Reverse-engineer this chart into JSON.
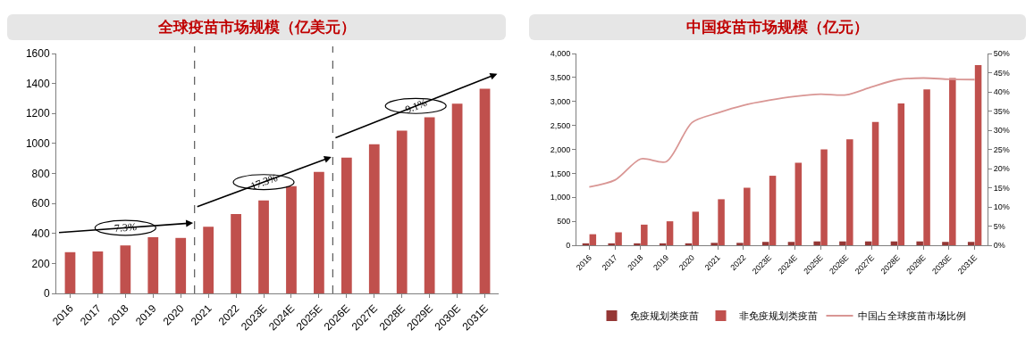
{
  "chart_data": [
    {
      "type": "bar",
      "title": "全球疫苗市场规模（亿美元）",
      "categories": [
        "2016",
        "2017",
        "2018",
        "2019",
        "2020",
        "2021",
        "2022",
        "2023E",
        "2024E",
        "2025E",
        "2026E",
        "2027E",
        "2028E",
        "2029E",
        "2030E",
        "2031E"
      ],
      "values": [
        275,
        280,
        320,
        375,
        370,
        445,
        530,
        620,
        715,
        810,
        905,
        995,
        1085,
        1175,
        1265,
        1365
      ],
      "color": "#c0504d",
      "ylim": [
        0,
        1600
      ],
      "yticks": [
        0,
        200,
        400,
        600,
        800,
        1000,
        1200,
        1400,
        1600
      ],
      "grid": false,
      "legend": false,
      "annotations": [
        "7.3%",
        "17.3%",
        "9.1%"
      ]
    },
    {
      "type": "bar",
      "title": "中国疫苗市场规模（亿元）",
      "categories": [
        "2016",
        "2017",
        "2018",
        "2019",
        "2020",
        "2021",
        "2022",
        "2023E",
        "2024E",
        "2025E",
        "2026E",
        "2027E",
        "2028E",
        "2029E",
        "2030E",
        "2031E"
      ],
      "series": [
        {
          "name": "免疫规划类疫苗",
          "color": "#953735",
          "values": [
            40,
            40,
            40,
            40,
            40,
            50,
            50,
            70,
            70,
            80,
            80,
            80,
            80,
            80,
            70,
            70
          ]
        },
        {
          "name": "非免疫规划类疫苗",
          "color": "#c0504d",
          "values": [
            230,
            270,
            430,
            500,
            700,
            960,
            1200,
            1450,
            1720,
            2000,
            2210,
            2570,
            2960,
            3250,
            3490,
            3760
          ]
        },
        {
          "name": "中国占全球疫苗市场比例",
          "type": "line",
          "axis": "y2",
          "color": "#d99694",
          "values": [
            15.2,
            17,
            22.5,
            21.8,
            32,
            34.5,
            36.5,
            37.8,
            38.8,
            39.4,
            39.2,
            41.3,
            43.2,
            43.6,
            43.3,
            43.2
          ]
        }
      ],
      "ylim": [
        0,
        4000
      ],
      "yticks": [
        0,
        {
          "value": 500,
          "label": "500"
        },
        {
          "value": 1000,
          "label": "1,000"
        },
        {
          "value": 1500,
          "label": "1,500"
        },
        {
          "value": 2000,
          "label": "2,000"
        },
        {
          "value": 2500,
          "label": "2,500"
        },
        {
          "value": 3000,
          "label": "3,000"
        },
        {
          "value": 3500,
          "label": "3,500"
        },
        {
          "value": 4000,
          "label": "4,000"
        }
      ],
      "y2lim": [
        0,
        50
      ],
      "y2ticks": [
        {
          "value": 0,
          "label": "0%"
        },
        {
          "value": 5,
          "label": "5%"
        },
        {
          "value": 10,
          "label": "10%"
        },
        {
          "value": 15,
          "label": "15%"
        },
        {
          "value": 20,
          "label": "20%"
        },
        {
          "value": 25,
          "label": "25%"
        },
        {
          "value": 30,
          "label": "30%"
        },
        {
          "value": 35,
          "label": "35%"
        },
        {
          "value": 40,
          "label": "40%"
        },
        {
          "value": 45,
          "label": "45%"
        },
        {
          "value": 50,
          "label": "50%"
        }
      ],
      "grid": false,
      "legend": "bottom",
      "marker": "none",
      "line_style": "solid"
    }
  ]
}
